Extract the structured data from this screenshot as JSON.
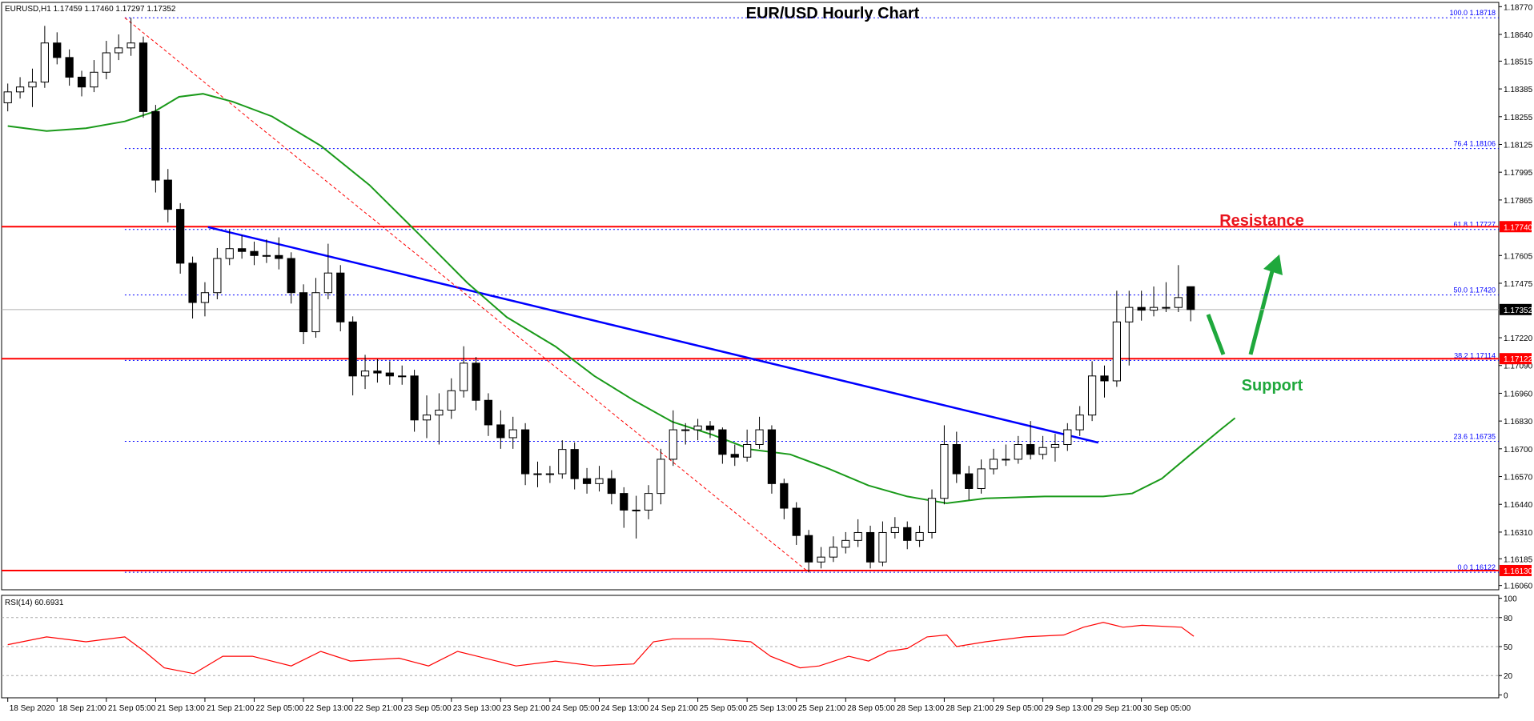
{
  "chart_data": [
    {
      "type": "candlestick",
      "title": "EUR/USD Hourly Chart",
      "header": "EURUSD,H1  1.17459 1.17460 1.17297 1.17352",
      "up_color": "#ffffff",
      "down_color": "#000000",
      "x": [
        0,
        2,
        4,
        6,
        8,
        10,
        12,
        14,
        16,
        18,
        20,
        22,
        24,
        26,
        28,
        30,
        32,
        34,
        36,
        38,
        40,
        42,
        44,
        46,
        48,
        50,
        52,
        54,
        56,
        58,
        60,
        62,
        64,
        66,
        68,
        70,
        72,
        74,
        76,
        78,
        80,
        82,
        84,
        86,
        88,
        90,
        92,
        94,
        96,
        98,
        100,
        102,
        104,
        106,
        108,
        110,
        112,
        114,
        116,
        118,
        120,
        122,
        124,
        126,
        128,
        130,
        132,
        134,
        136,
        138,
        140,
        142,
        144,
        146,
        148,
        150,
        152,
        154,
        156,
        158,
        160,
        162,
        164,
        166,
        168,
        170,
        172,
        174,
        176,
        178,
        180,
        182,
        184,
        186,
        188,
        190,
        192
      ],
      "candles": [
        [
          1.1832,
          1.1841,
          1.1828,
          1.18371
        ],
        [
          1.18371,
          1.1844,
          1.1834,
          1.18394
        ],
        [
          1.18394,
          1.1848,
          1.183,
          1.18417
        ],
        [
          1.18417,
          1.1868,
          1.1839,
          1.186
        ],
        [
          1.186,
          1.1865,
          1.185,
          1.18532
        ],
        [
          1.18532,
          1.1857,
          1.184,
          1.1844
        ],
        [
          1.1844,
          1.1847,
          1.1835,
          1.18394
        ],
        [
          1.18394,
          1.1852,
          1.1837,
          1.18463
        ],
        [
          1.18463,
          1.1861,
          1.1843,
          1.18554
        ],
        [
          1.18554,
          1.1864,
          1.1852,
          1.18577
        ],
        [
          1.18577,
          1.18718,
          1.1854,
          1.186
        ],
        [
          1.186,
          1.1863,
          1.1825,
          1.18279
        ],
        [
          1.18279,
          1.1831,
          1.179,
          1.17958
        ],
        [
          1.17958,
          1.1801,
          1.1776,
          1.17821
        ],
        [
          1.17821,
          1.1785,
          1.1752,
          1.17569
        ],
        [
          1.17569,
          1.176,
          1.1731,
          1.17385
        ],
        [
          1.17385,
          1.1748,
          1.1732,
          1.17431
        ],
        [
          1.17431,
          1.1764,
          1.174,
          1.17591
        ],
        [
          1.17591,
          1.17727,
          1.1756,
          1.17637
        ],
        [
          1.17637,
          1.177,
          1.1759,
          1.17624
        ],
        [
          1.17624,
          1.1767,
          1.1756,
          1.17605
        ],
        [
          1.17605,
          1.1768,
          1.1757,
          1.17605
        ],
        [
          1.17605,
          1.1769,
          1.1754,
          1.17591
        ],
        [
          1.17591,
          1.1762,
          1.1738,
          1.17431
        ],
        [
          1.17431,
          1.1747,
          1.1719,
          1.17248
        ],
        [
          1.17248,
          1.175,
          1.1722,
          1.17431
        ],
        [
          1.17431,
          1.1766,
          1.174,
          1.17523
        ],
        [
          1.17523,
          1.1756,
          1.1725,
          1.17294
        ],
        [
          1.17294,
          1.1732,
          1.1695,
          1.17041
        ],
        [
          1.17041,
          1.1714,
          1.1698,
          1.17064
        ],
        [
          1.17064,
          1.1712,
          1.1701,
          1.17055
        ],
        [
          1.17055,
          1.1711,
          1.17,
          1.17041
        ],
        [
          1.17041,
          1.1709,
          1.17,
          1.17041
        ],
        [
          1.17041,
          1.1707,
          1.1678,
          1.16835
        ],
        [
          1.16835,
          1.1695,
          1.1675,
          1.16858
        ],
        [
          1.16858,
          1.1696,
          1.1672,
          1.16881
        ],
        [
          1.16881,
          1.1703,
          1.1684,
          1.16972
        ],
        [
          1.16972,
          1.1718,
          1.1694,
          1.17101
        ],
        [
          1.17101,
          1.1713,
          1.1688,
          1.16927
        ],
        [
          1.16927,
          1.1696,
          1.1676,
          1.16812
        ],
        [
          1.16812,
          1.1688,
          1.167,
          1.16752
        ],
        [
          1.16752,
          1.1685,
          1.167,
          1.16789
        ],
        [
          1.16789,
          1.1682,
          1.1653,
          1.16583
        ],
        [
          1.16583,
          1.1664,
          1.1652,
          1.16583
        ],
        [
          1.16583,
          1.1662,
          1.1654,
          1.16583
        ],
        [
          1.16583,
          1.1674,
          1.1656,
          1.16697
        ],
        [
          1.16697,
          1.1673,
          1.1651,
          1.1656
        ],
        [
          1.1656,
          1.1661,
          1.1649,
          1.16537
        ],
        [
          1.16537,
          1.1662,
          1.165,
          1.1656
        ],
        [
          1.1656,
          1.166,
          1.1644,
          1.16491
        ],
        [
          1.16491,
          1.1652,
          1.1633,
          1.16413
        ],
        [
          1.16413,
          1.1648,
          1.1628,
          1.16413
        ],
        [
          1.16413,
          1.1653,
          1.1637,
          1.16491
        ],
        [
          1.16491,
          1.167,
          1.1644,
          1.16651
        ],
        [
          1.16651,
          1.1688,
          1.1662,
          1.16789
        ],
        [
          1.16789,
          1.1682,
          1.1672,
          1.16789
        ],
        [
          1.16789,
          1.1684,
          1.1674,
          1.16807
        ],
        [
          1.16807,
          1.1683,
          1.1675,
          1.16789
        ],
        [
          1.16789,
          1.168,
          1.1663,
          1.16674
        ],
        [
          1.16674,
          1.1672,
          1.1662,
          1.16661
        ],
        [
          1.16661,
          1.1679,
          1.1664,
          1.1672
        ],
        [
          1.1672,
          1.1685,
          1.167,
          1.16789
        ],
        [
          1.16789,
          1.1681,
          1.1649,
          1.16537
        ],
        [
          1.16537,
          1.1656,
          1.1637,
          1.16422
        ],
        [
          1.16422,
          1.1645,
          1.1625,
          1.16294
        ],
        [
          1.16294,
          1.1632,
          1.16122,
          1.1617
        ],
        [
          1.1617,
          1.1624,
          1.1614,
          1.16193
        ],
        [
          1.16193,
          1.1629,
          1.1617,
          1.16239
        ],
        [
          1.16239,
          1.1631,
          1.1621,
          1.16271
        ],
        [
          1.16271,
          1.1637,
          1.1624,
          1.16308
        ],
        [
          1.16308,
          1.1634,
          1.1614,
          1.1617
        ],
        [
          1.1617,
          1.1636,
          1.1615,
          1.16308
        ],
        [
          1.16308,
          1.1638,
          1.1628,
          1.16331
        ],
        [
          1.16331,
          1.1636,
          1.1623,
          1.16271
        ],
        [
          1.16271,
          1.1634,
          1.1624,
          1.16308
        ],
        [
          1.16308,
          1.1651,
          1.1628,
          1.16468
        ],
        [
          1.16468,
          1.1681,
          1.1644,
          1.1672
        ],
        [
          1.1672,
          1.1678,
          1.1654,
          1.16583
        ],
        [
          1.16583,
          1.1662,
          1.1646,
          1.16514
        ],
        [
          1.16514,
          1.1665,
          1.1649,
          1.16606
        ],
        [
          1.16606,
          1.167,
          1.1658,
          1.16651
        ],
        [
          1.16651,
          1.1672,
          1.1662,
          1.16651
        ],
        [
          1.16651,
          1.1676,
          1.1663,
          1.1672
        ],
        [
          1.1672,
          1.1683,
          1.1665,
          1.16674
        ],
        [
          1.16674,
          1.1676,
          1.1665,
          1.16706
        ],
        [
          1.16706,
          1.1677,
          1.1664,
          1.1672
        ],
        [
          1.1672,
          1.1682,
          1.1669,
          1.16789
        ],
        [
          1.16789,
          1.169,
          1.1676,
          1.16858
        ],
        [
          1.16858,
          1.1711,
          1.1683,
          1.17041
        ],
        [
          1.17041,
          1.1709,
          1.1694,
          1.17018
        ],
        [
          1.17018,
          1.1744,
          1.1699,
          1.17294
        ],
        [
          1.17294,
          1.1744,
          1.1709,
          1.17362
        ],
        [
          1.17362,
          1.1744,
          1.173,
          1.17349
        ],
        [
          1.17349,
          1.1746,
          1.1732,
          1.17362
        ],
        [
          1.17362,
          1.1748,
          1.1734,
          1.17362
        ],
        [
          1.17362,
          1.1756,
          1.1734,
          1.17408
        ],
        [
          1.17459,
          1.1746,
          1.17297,
          1.17352
        ]
      ],
      "xlim": [
        -1,
        242
      ],
      "xticks": [
        {
          "value": 0,
          "label": "18 Sep 2020"
        },
        {
          "value": 8,
          "label": "18 Sep 21:00"
        },
        {
          "value": 16,
          "label": "21 Sep 05:00"
        },
        {
          "value": 24,
          "label": "21 Sep 13:00"
        },
        {
          "value": 32,
          "label": "21 Sep 21:00"
        },
        {
          "value": 40,
          "label": "22 Sep 05:00"
        },
        {
          "value": 48,
          "label": "22 Sep 13:00"
        },
        {
          "value": 56,
          "label": "22 Sep 21:00"
        },
        {
          "value": 64,
          "label": "23 Sep 05:00"
        },
        {
          "value": 72,
          "label": "23 Sep 13:00"
        },
        {
          "value": 80,
          "label": "23 Sep 21:00"
        },
        {
          "value": 88,
          "label": "24 Sep 05:00"
        },
        {
          "value": 96,
          "label": "24 Sep 13:00"
        },
        {
          "value": 104,
          "label": "24 Sep 21:00"
        },
        {
          "value": 112,
          "label": "25 Sep 05:00"
        },
        {
          "value": 120,
          "label": "25 Sep 13:00"
        },
        {
          "value": 128,
          "label": "25 Sep 21:00"
        },
        {
          "value": 136,
          "label": "28 Sep 05:00"
        },
        {
          "value": 144,
          "label": "28 Sep 13:00"
        },
        {
          "value": 152,
          "label": "28 Sep 21:00"
        },
        {
          "value": 160,
          "label": "29 Sep 05:00"
        },
        {
          "value": 168,
          "label": "29 Sep 13:00"
        },
        {
          "value": 176,
          "label": "29 Sep 21:00"
        },
        {
          "value": 184,
          "label": "30 Sep 05:00"
        }
      ],
      "ylim": [
        1.1604,
        1.1879
      ],
      "yticks": [
        {
          "value": 1.1877,
          "label": "1.18770"
        },
        {
          "value": 1.1864,
          "label": "1.18640"
        },
        1.18515,
        1.18385,
        1.18255,
        1.18125,
        1.17995,
        1.17865,
        1.17605,
        1.17475,
        {
          "value": 1.1722,
          "label": "1.17220"
        },
        {
          "value": 1.1709,
          "label": "1.17090"
        },
        {
          "value": 1.1696,
          "label": "1.16960"
        },
        {
          "value": 1.1683,
          "label": "1.16830"
        },
        {
          "value": 1.167,
          "label": "1.16700"
        },
        {
          "value": 1.1657,
          "label": "1.16570"
        },
        {
          "value": 1.1644,
          "label": "1.16440"
        },
        {
          "value": 1.1631,
          "label": "1.16310"
        },
        1.16185,
        {
          "value": 1.1606,
          "label": "1.16060"
        }
      ],
      "current_price": {
        "value": 1.17352,
        "label": "1.17352"
      },
      "levels": [
        {
          "value": 1.1774,
          "label": "1.17740",
          "color": "#ff0000"
        },
        {
          "value": 1.17122,
          "label": "1.17122",
          "color": "#ff0000"
        },
        {
          "value": 1.1613,
          "label": "1.16130",
          "color": "#ff0000"
        }
      ],
      "fib_levels": [
        {
          "value": 1.18718,
          "label": "100.0 1.18718"
        },
        {
          "value": 1.18106,
          "label": "76.4 1.18106"
        },
        {
          "value": 1.17727,
          "label": "61.8 1.17727"
        },
        {
          "value": 1.1742,
          "label": "50.0 1.17420"
        },
        {
          "value": 1.17114,
          "label": "38.2 1.17114"
        },
        {
          "value": 1.16735,
          "label": "23.6 1.16735"
        },
        {
          "value": 1.16122,
          "label": "0.0 1.16122"
        }
      ],
      "fib_color": "#0000ff",
      "ma": {
        "color": "#1a9a1a",
        "x": [
          0,
          6.3,
          12.7,
          19,
          23.8,
          27.8,
          31.7,
          36.5,
          42.9,
          50.8,
          58.7,
          66.7,
          74.6,
          81,
          88.9,
          95.2,
          101.6,
          107.9,
          114.3,
          120.6,
          127,
          133.3,
          139.7,
          146,
          152.4,
          158.7,
          168.3,
          177.8,
          182.5,
          187.3,
          192,
          196.8,
          199.2
        ],
        "values": [
          1.18211,
          1.18188,
          1.18201,
          1.18233,
          1.18279,
          1.18348,
          1.18362,
          1.18325,
          1.18256,
          1.18119,
          1.17935,
          1.17706,
          1.17477,
          1.17316,
          1.17179,
          1.17041,
          1.16927,
          1.16826,
          1.16766,
          1.16697,
          1.16674,
          1.16606,
          1.16528,
          1.16477,
          1.16445,
          1.16468,
          1.16477,
          1.16477,
          1.16491,
          1.1656,
          1.16674,
          1.16789,
          1.16844
        ]
      },
      "trendlines": [
        {
          "x": [
            32.5,
            177
          ],
          "values": [
            1.17738,
            1.16729
          ],
          "color": "#0000ff",
          "dash": false
        },
        {
          "x": [
            19,
            130
          ],
          "values": [
            1.18718,
            1.16122
          ],
          "color": "#ff0000",
          "dash": true
        }
      ],
      "annotations": [
        {
          "text": "Resistance",
          "color": "#e8141e"
        },
        {
          "text": "Support",
          "color": "#1fa83c"
        }
      ]
    },
    {
      "type": "line",
      "title": "RSI(14) 60.6931",
      "color": "#ff0000",
      "x": [
        0,
        6.3,
        12.7,
        19,
        22.2,
        25.4,
        30.2,
        34.9,
        39.7,
        46,
        50.8,
        55.6,
        63.5,
        68.3,
        73,
        76.2,
        82.5,
        88.9,
        95.2,
        101.6,
        104.8,
        107.9,
        114.3,
        120.6,
        123.8,
        128.6,
        131.7,
        136.5,
        139.7,
        142.9,
        146,
        149.2,
        152.4,
        154,
        158.7,
        165.1,
        171.4,
        174.6,
        177.8,
        181,
        184.1,
        190.5,
        192.5
      ],
      "values": [
        52,
        60,
        55,
        60,
        45,
        28,
        22,
        40,
        40,
        30,
        45,
        35,
        38,
        30,
        45,
        40,
        30,
        35,
        30,
        32,
        55,
        58,
        58,
        55,
        40,
        28,
        30,
        40,
        35,
        45,
        48,
        60,
        62,
        50,
        55,
        60,
        62,
        70,
        75,
        70,
        72,
        70,
        60.6931
      ],
      "ylim": [
        -3,
        103
      ],
      "yticks": [
        0,
        20,
        50,
        80,
        100
      ],
      "grid": true
    }
  ]
}
